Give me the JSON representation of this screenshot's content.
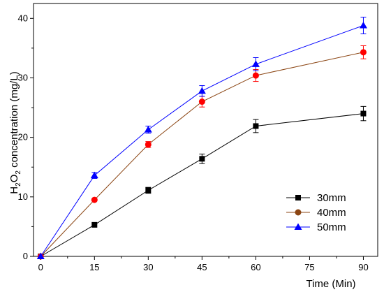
{
  "chart_data": {
    "type": "line",
    "xlabel": "Time (Min)",
    "ylabel": "H2O2 concentration (mg/L)",
    "ylabel_parts": {
      "pre": "H",
      "sub1": "2",
      "mid": "O",
      "sub2": "2",
      "post": " concentration (mg/L)"
    },
    "xlim": [
      -2,
      94
    ],
    "ylim": [
      0,
      42.5
    ],
    "xticks": [
      0,
      15,
      30,
      45,
      60,
      75,
      90
    ],
    "yticks": [
      0,
      10,
      20,
      30,
      40
    ],
    "xtick_labels": [
      "0",
      "15",
      "30",
      "45",
      "60",
      "75",
      "90"
    ],
    "ytick_labels": [
      "0",
      "10",
      "20",
      "30",
      "40"
    ],
    "grid": false,
    "legend_position": "lower-right",
    "series": [
      {
        "name": "30mm",
        "color": "#000000",
        "marker": "square",
        "x": [
          0,
          15,
          30,
          45,
          60,
          90
        ],
        "y": [
          0,
          5.3,
          11.1,
          16.4,
          21.9,
          24.0
        ],
        "err": [
          0,
          0,
          0.5,
          0.8,
          1.1,
          1.2
        ]
      },
      {
        "name": "40mm",
        "color": "#ff0000",
        "line_color": "#8b4513",
        "marker": "circle",
        "x": [
          0,
          15,
          30,
          45,
          60,
          90
        ],
        "y": [
          0,
          9.5,
          18.8,
          26.0,
          30.4,
          34.3
        ],
        "err": [
          0,
          0,
          0.5,
          0.9,
          1.0,
          1.1
        ]
      },
      {
        "name": "50mm",
        "color": "#0000ff",
        "marker": "triangle",
        "x": [
          0,
          15,
          30,
          45,
          60,
          90
        ],
        "y": [
          0,
          13.6,
          21.3,
          27.8,
          32.3,
          38.8
        ],
        "err": [
          0,
          0.5,
          0.6,
          0.9,
          1.1,
          1.4
        ]
      }
    ],
    "legend": [
      {
        "label": "30mm",
        "marker": "square",
        "color": "#000000"
      },
      {
        "label": "40mm",
        "marker": "circle",
        "color": "#8b4513"
      },
      {
        "label": "50mm",
        "marker": "triangle",
        "color": "#0000ff"
      }
    ]
  }
}
